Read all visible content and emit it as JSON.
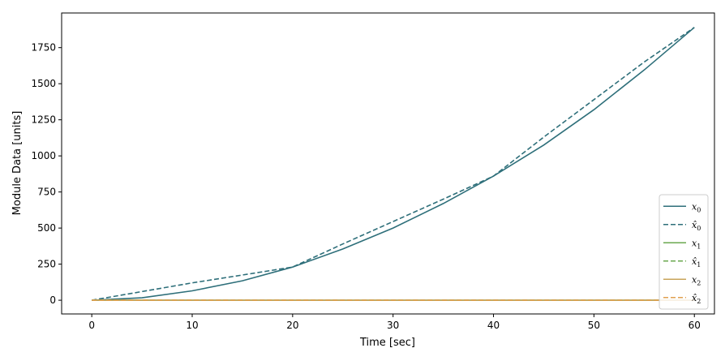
{
  "chart_data": {
    "type": "line",
    "xlabel": "Time [sec]",
    "ylabel": "Module Data [units]",
    "xlim": [
      -3,
      62
    ],
    "ylim": [
      -95,
      1990
    ],
    "xticks": [
      0,
      10,
      20,
      30,
      40,
      50,
      60
    ],
    "yticks": [
      0,
      250,
      500,
      750,
      1000,
      1250,
      1500,
      1750
    ],
    "grid": false,
    "legend_position": "lower-right",
    "series": [
      {
        "name": "x0",
        "label_base": "x",
        "label_sub": "0",
        "hat": false,
        "color": "#2e6f7a",
        "dash": "solid",
        "x": [
          0,
          5,
          10,
          15,
          20,
          25,
          30,
          35,
          40,
          45,
          50,
          55,
          60
        ],
        "y": [
          0,
          17,
          65,
          135,
          230,
          355,
          500,
          670,
          860,
          1075,
          1320,
          1595,
          1890
        ]
      },
      {
        "name": "x̂0",
        "label_base": "x",
        "label_sub": "0",
        "hat": true,
        "color": "#2e6f7a",
        "dash": "dashed",
        "x": [
          0,
          5,
          10,
          15,
          20,
          25,
          30,
          35,
          40,
          45,
          50,
          55,
          60
        ],
        "y": [
          0,
          60,
          120,
          175,
          230,
          390,
          545,
          700,
          860,
          1130,
          1390,
          1650,
          1890
        ]
      },
      {
        "name": "x1",
        "label_base": "x",
        "label_sub": "1",
        "hat": false,
        "color": "#6aa84f",
        "dash": "solid",
        "x": [
          0,
          60
        ],
        "y": [
          0,
          0
        ]
      },
      {
        "name": "x̂1",
        "label_base": "x",
        "label_sub": "1",
        "hat": true,
        "color": "#6aa84f",
        "dash": "dashed",
        "x": [
          0,
          60
        ],
        "y": [
          0,
          0
        ]
      },
      {
        "name": "x2",
        "label_base": "x",
        "label_sub": "2",
        "hat": false,
        "color": "#c8a45a",
        "dash": "solid",
        "x": [
          0,
          60
        ],
        "y": [
          0,
          0
        ]
      },
      {
        "name": "x̂2",
        "label_base": "x",
        "label_sub": "2",
        "hat": true,
        "color": "#e0a050",
        "dash": "dashed",
        "x": [
          0,
          60
        ],
        "y": [
          0,
          0
        ]
      }
    ]
  }
}
